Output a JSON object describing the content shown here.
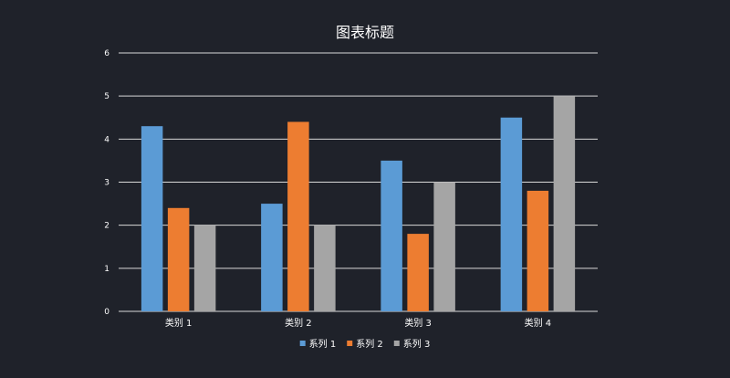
{
  "chart_data": {
    "type": "bar",
    "title": "图表标题",
    "xlabel": "",
    "ylabel": "",
    "categories": [
      "类别 1",
      "类别 2",
      "类别 3",
      "类别 4"
    ],
    "series": [
      {
        "name": "系列 1",
        "values": [
          4.3,
          2.5,
          3.5,
          4.5
        ],
        "color": "#5b9bd5"
      },
      {
        "name": "系列 2",
        "values": [
          2.4,
          4.4,
          1.8,
          2.8
        ],
        "color": "#ed7d31"
      },
      {
        "name": "系列 3",
        "values": [
          2.0,
          2.0,
          3.0,
          5.0
        ],
        "color": "#a5a5a5"
      }
    ],
    "ylim": [
      0,
      6
    ],
    "yticks": [
      "0",
      "1",
      "2",
      "3",
      "4",
      "5",
      "6"
    ],
    "grid": true,
    "legend": "bottom",
    "background": "#1f222a",
    "text_color": "#ffffff",
    "grid_color": "#d9d9d9"
  }
}
